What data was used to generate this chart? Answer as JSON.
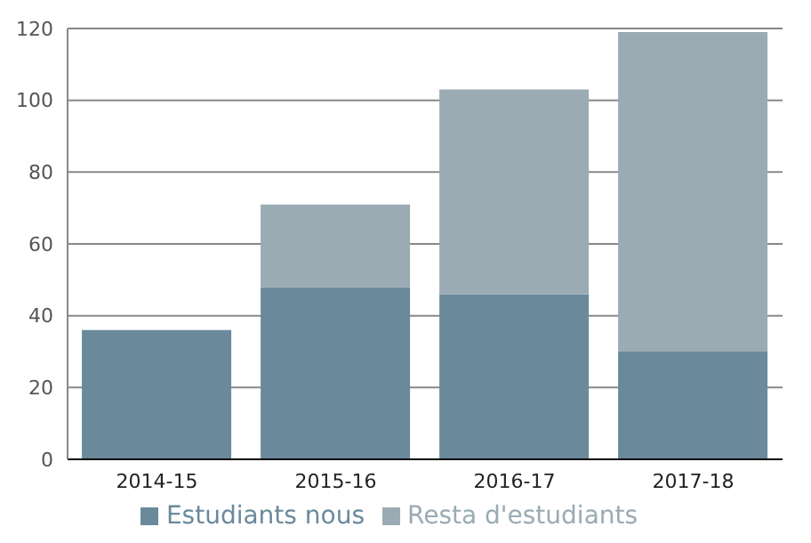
{
  "chart_data": {
    "type": "bar",
    "stacked": true,
    "categories": [
      "2014-15",
      "2015-16",
      "2016-17",
      "2017-18"
    ],
    "series": [
      {
        "name": "Estudiants nous",
        "color": "#6a8a9c",
        "values": [
          36,
          48,
          46,
          30
        ]
      },
      {
        "name": "Resta d'estudiants",
        "color": "#9aabb3",
        "values": [
          0,
          23,
          57,
          89
        ]
      }
    ],
    "ylim": [
      0,
      120
    ],
    "yticks": [
      0,
      20,
      40,
      60,
      80,
      100,
      120
    ],
    "grid": "y",
    "legend": "bottom"
  }
}
